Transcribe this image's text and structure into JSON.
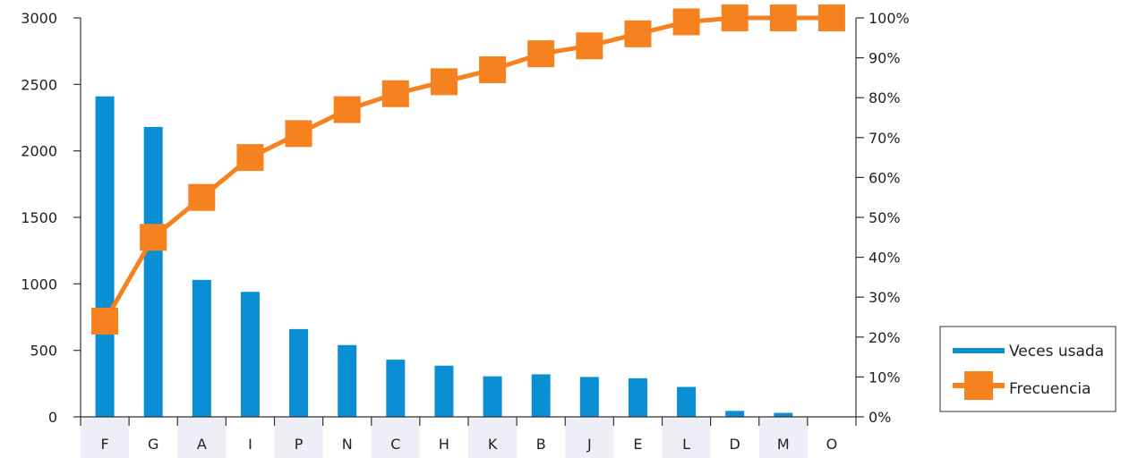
{
  "chart_data": {
    "type": "bar",
    "title": "",
    "categories": [
      "F",
      "G",
      "A",
      "I",
      "P",
      "N",
      "C",
      "H",
      "K",
      "B",
      "J",
      "E",
      "L",
      "D",
      "M",
      "O"
    ],
    "series": [
      {
        "name": "Veces usada",
        "type": "bar",
        "axis": "left",
        "color": "#0a8fd4",
        "values": [
          2410,
          2180,
          1030,
          940,
          660,
          540,
          430,
          385,
          305,
          320,
          300,
          290,
          225,
          45,
          30,
          0
        ]
      },
      {
        "name": "Frecuencia",
        "type": "line",
        "axis": "right",
        "color": "#f5821f",
        "values": [
          24,
          45,
          55,
          65,
          71,
          77,
          81,
          84,
          87,
          91,
          93,
          96,
          99,
          100,
          100,
          100
        ]
      }
    ],
    "y_left": {
      "range": [
        0,
        3000
      ],
      "ticks": [
        0,
        500,
        1000,
        1500,
        2000,
        2500,
        3000
      ],
      "tick_labels": [
        "0",
        "500",
        "1000",
        "1500",
        "2000",
        "2500",
        "3000"
      ]
    },
    "y_right": {
      "range": [
        0,
        100
      ],
      "ticks": [
        0,
        10,
        20,
        30,
        40,
        50,
        60,
        70,
        80,
        90,
        100
      ],
      "tick_labels": [
        "0%",
        "10%",
        "20%",
        "30%",
        "40%",
        "50%",
        "60%",
        "70%",
        "80%",
        "90%",
        "100%"
      ]
    },
    "grid": false,
    "legend_position": "right",
    "shaded_category_color": "#eeeff6"
  }
}
